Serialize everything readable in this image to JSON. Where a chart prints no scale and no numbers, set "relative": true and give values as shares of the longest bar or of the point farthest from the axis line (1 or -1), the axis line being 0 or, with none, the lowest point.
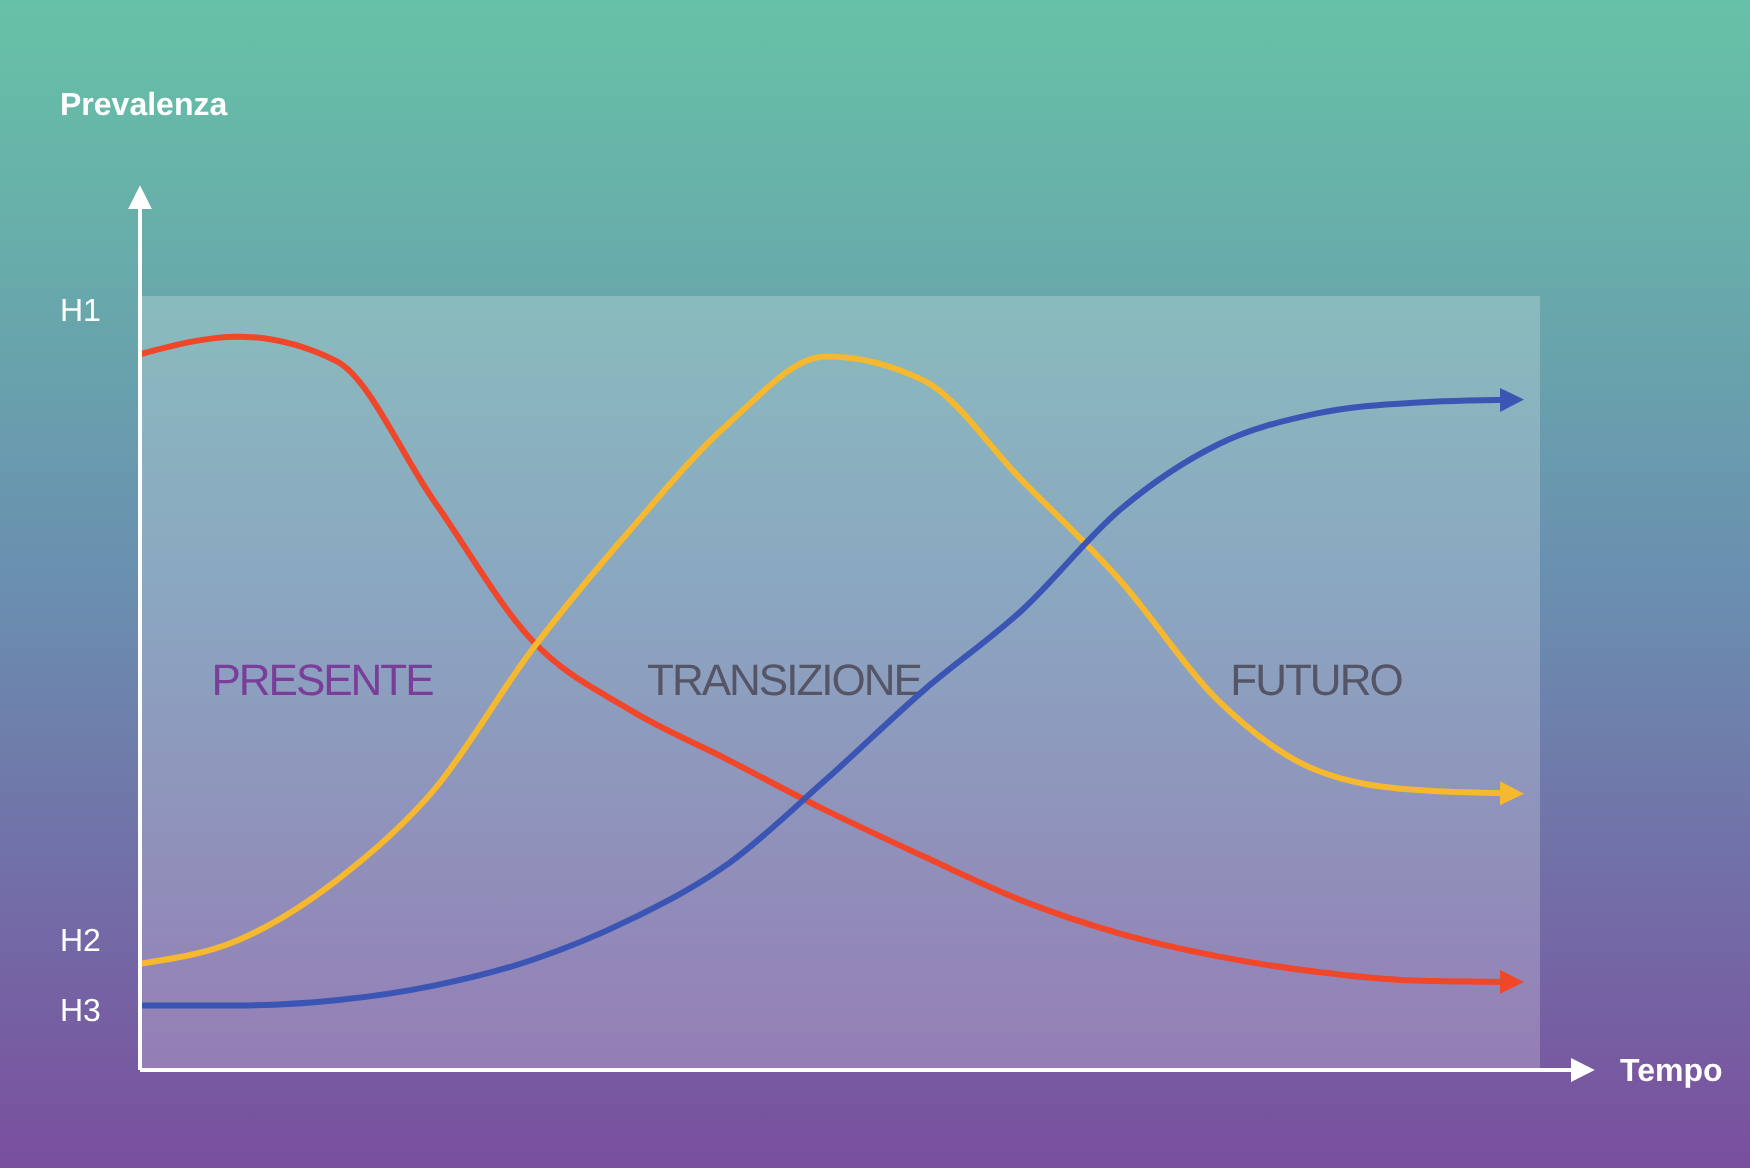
{
  "chart_data": {
    "type": "line",
    "xlabel": "Tempo",
    "relative": true,
    "categories": [
      null,
      null,
      null,
      null,
      null,
      null,
      null,
      null,
      null,
      null,
      null,
      null,
      null,
      null,
      null
    ],
    "series": [
      {
        "color": "#f0462a",
        "values": [
          0.976,
          1,
          0.967,
          0.776,
          0.586,
          0.491,
          0.423,
          0.354,
          0.291,
          0.231,
          0.186,
          0.155,
          0.134,
          0.122,
          0.12
        ]
      },
      {
        "color": "#f5b82e",
        "values": [
          0.145,
          0.177,
          0.258,
          0.382,
          0.573,
          0.736,
          0.881,
          0.973,
          0.94,
          0.804,
          0.668,
          0.504,
          0.409,
          0.382,
          0.377
        ]
      },
      {
        "color": "#3b55b5",
        "values": [
          0.088,
          0.088,
          0.095,
          0.115,
          0.15,
          0.205,
          0.281,
          0.396,
          0.518,
          0.627,
          0.764,
          0.853,
          0.895,
          0.91,
          0.914
        ]
      }
    ],
    "annotations": [
      "Prevalenza",
      "H1",
      "H2",
      "H3",
      "PRESENTE",
      "TRANSIZIONE",
      "FUTURO"
    ],
    "marker": "none",
    "line_style": "solid"
  }
}
